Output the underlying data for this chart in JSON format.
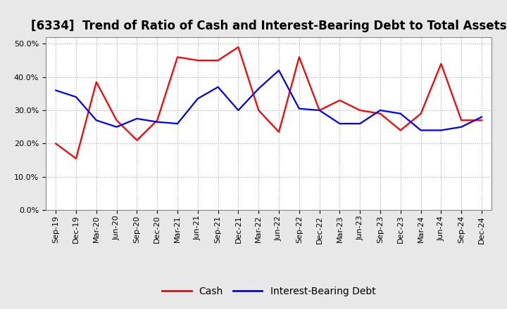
{
  "title": "[6334]  Trend of Ratio of Cash and Interest-Bearing Debt to Total Assets",
  "labels": [
    "Sep-19",
    "Dec-19",
    "Mar-20",
    "Jun-20",
    "Sep-20",
    "Dec-20",
    "Mar-21",
    "Jun-21",
    "Sep-21",
    "Dec-21",
    "Mar-22",
    "Jun-22",
    "Sep-22",
    "Dec-22",
    "Mar-23",
    "Jun-23",
    "Sep-23",
    "Dec-23",
    "Mar-24",
    "Jun-24",
    "Sep-24",
    "Dec-24"
  ],
  "cash": [
    0.2,
    0.155,
    0.385,
    0.27,
    0.21,
    0.27,
    0.46,
    0.45,
    0.45,
    0.49,
    0.3,
    0.235,
    0.46,
    0.3,
    0.33,
    0.3,
    0.29,
    0.24,
    0.29,
    0.44,
    0.27,
    0.27
  ],
  "ibd": [
    0.36,
    0.34,
    0.27,
    0.25,
    0.275,
    0.265,
    0.26,
    0.335,
    0.37,
    0.3,
    0.365,
    0.42,
    0.305,
    0.3,
    0.26,
    0.26,
    0.3,
    0.29,
    0.24,
    0.24,
    0.25,
    0.28
  ],
  "cash_color": "#FF0000",
  "ibd_color": "#0000FF",
  "background_color": "#E8E8E8",
  "plot_bg_color": "#FFFFFF",
  "ylim": [
    0.0,
    0.52
  ],
  "yticks": [
    0.0,
    0.1,
    0.2,
    0.3,
    0.4,
    0.5
  ],
  "legend_cash": "Cash",
  "legend_ibd": "Interest-Bearing Debt",
  "title_fontsize": 12,
  "tick_fontsize": 8,
  "legend_fontsize": 10
}
